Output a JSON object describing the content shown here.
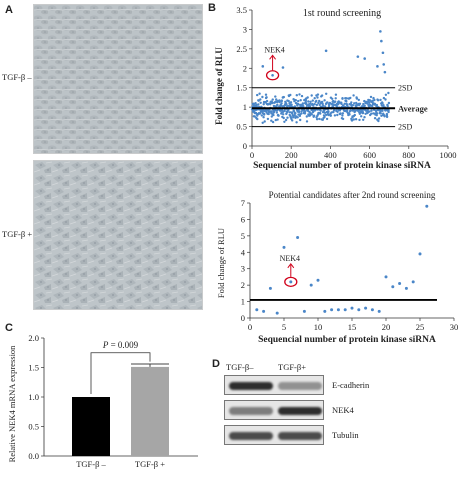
{
  "panels": {
    "a": {
      "letter": "A",
      "top_label": "TGF-β –",
      "bottom_label": "TGF-β +"
    },
    "b": {
      "letter": "B"
    },
    "c": {
      "letter": "C"
    },
    "d": {
      "letter": "D"
    }
  },
  "western_blot": {
    "lane_labels": [
      "TGF-β–",
      "TGF-β+"
    ],
    "bands": [
      {
        "label": "E-cadherin",
        "intensity": [
          0.95,
          0.45
        ]
      },
      {
        "label": "NEK4",
        "intensity": [
          0.55,
          0.95
        ]
      },
      {
        "label": "Tubulin",
        "intensity": [
          0.8,
          0.8
        ]
      }
    ]
  },
  "chart_data": [
    {
      "id": "B1",
      "type": "scatter",
      "title": "1st round screening",
      "xlabel": "Sequencial number of protein kinase siRNA",
      "ylabel": "Fold change of RLU",
      "xlim": [
        0,
        1000
      ],
      "ylim": [
        0,
        3.5
      ],
      "xticks": [
        0,
        200,
        400,
        600,
        800,
        1000
      ],
      "yticks": [
        0,
        0.5,
        1,
        1.5,
        2,
        2.5,
        3,
        3.5
      ],
      "reference_lines": [
        {
          "y": 1.5,
          "label": "2SD"
        },
        {
          "y": 0.97,
          "label": "Average"
        },
        {
          "y": 0.5,
          "label": "2SD"
        }
      ],
      "highlight": {
        "label": "NEK4",
        "x": 105,
        "y": 1.82
      },
      "notable_points": [
        {
          "x": 55,
          "y": 2.05
        },
        {
          "x": 105,
          "y": 1.82
        },
        {
          "x": 158,
          "y": 2.02
        },
        {
          "x": 378,
          "y": 2.45
        },
        {
          "x": 540,
          "y": 2.3
        },
        {
          "x": 575,
          "y": 2.25
        },
        {
          "x": 655,
          "y": 2.95
        },
        {
          "x": 660,
          "y": 2.7
        },
        {
          "x": 668,
          "y": 2.4
        },
        {
          "x": 672,
          "y": 2.1
        },
        {
          "x": 678,
          "y": 1.9
        },
        {
          "x": 640,
          "y": 2.05
        }
      ],
      "bulk_distribution": {
        "count": 680,
        "x_range": [
          1,
          700
        ],
        "center": 0.97,
        "spread": 0.27,
        "min": 0.35,
        "max": 1.95
      },
      "color": "#4a86c8"
    },
    {
      "id": "B2",
      "type": "scatter",
      "title": "Potential candidates after 2nd round screening",
      "xlabel": "Sequencial number of protein kinase siRNA",
      "ylabel": "Fold change of RLU",
      "xlim": [
        0,
        30
      ],
      "ylim": [
        0,
        7
      ],
      "xticks": [
        0,
        5,
        10,
        15,
        20,
        25,
        30
      ],
      "yticks": [
        0,
        1,
        2,
        3,
        4,
        5,
        6,
        7
      ],
      "reference_lines": [
        {
          "y": 1.1
        }
      ],
      "highlight": {
        "label": "NEK4",
        "x": 6,
        "y": 2.2
      },
      "x": [
        1,
        2,
        3,
        4,
        5,
        6,
        7,
        8,
        9,
        10,
        11,
        12,
        13,
        14,
        15,
        16,
        17,
        18,
        19,
        20,
        21,
        22,
        23,
        24,
        25,
        26
      ],
      "y": [
        0.5,
        0.4,
        1.8,
        0.3,
        4.3,
        2.2,
        4.9,
        0.4,
        2.0,
        2.3,
        0.4,
        0.5,
        0.5,
        0.5,
        0.6,
        0.5,
        0.6,
        0.5,
        0.4,
        2.5,
        1.9,
        2.1,
        1.8,
        2.2,
        3.9,
        6.8
      ],
      "color": "#4a86c8"
    },
    {
      "id": "C",
      "type": "bar",
      "categories": [
        "TGF-β –",
        "TGF-β +"
      ],
      "values": [
        1.0,
        1.51
      ],
      "errors": [
        0,
        0.05
      ],
      "colors": [
        "#000000",
        "#a6a6a6"
      ],
      "ylabel": "Relative NEK4 mRNA expression",
      "ylim": [
        0,
        2.0
      ],
      "yticks": [
        0,
        0.5,
        1.0,
        1.5,
        2.0
      ],
      "annotation": {
        "text_prefix": "P",
        "text_value": "= 0.009"
      }
    }
  ]
}
